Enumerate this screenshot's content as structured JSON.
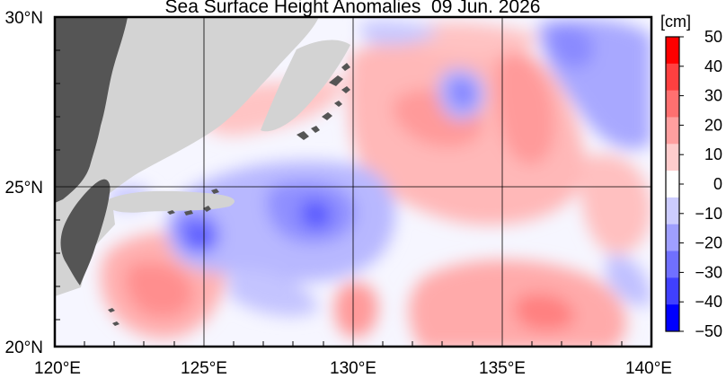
{
  "title": "Sea Surface Height Anomalies  09 Jun. 2026",
  "map": {
    "lon_range": [
      120,
      140
    ],
    "lat_range": [
      20,
      30
    ],
    "x_ticks": [
      "120°E",
      "125°E",
      "130°E",
      "135°E",
      "140°E"
    ],
    "y_ticks": [
      "30°N",
      "25°N",
      "20°N"
    ],
    "grid": true,
    "land_color": "#555555",
    "land_outside_color": "#d3d3d3"
  },
  "colorbar": {
    "unit": "[cm]",
    "labels": [
      "50",
      "40",
      "30",
      "20",
      "10",
      "0",
      "−10",
      "−20",
      "−30",
      "−40",
      "−50"
    ],
    "colors": [
      "#ff0000",
      "#ff4040",
      "#ff7070",
      "#ff9f9f",
      "#ffcccc",
      "#ffffff",
      "#ccccff",
      "#9f9fff",
      "#7070ff",
      "#4040ff",
      "#0000ff"
    ]
  }
}
